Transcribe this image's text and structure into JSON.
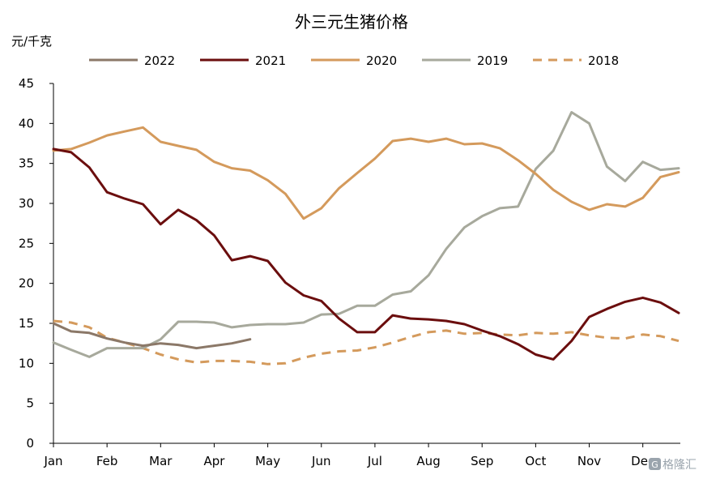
{
  "chart_data": {
    "type": "line",
    "title": "外三元生猪价格",
    "ylabel": "元/千克",
    "xlabel": "",
    "ylim": [
      0,
      45
    ],
    "yticks": [
      0,
      5,
      10,
      15,
      20,
      25,
      30,
      35,
      40,
      45
    ],
    "xlim": [
      0,
      11.7
    ],
    "xtick_labels": [
      "Jan",
      "Feb",
      "Mar",
      "Apr",
      "May",
      "Jun",
      "Jul",
      "Aug",
      "Sep",
      "Oct",
      "Nov",
      "Dec"
    ],
    "grid": false,
    "legend_position": "top",
    "x_unit": "months from Jan 1",
    "series": [
      {
        "name": "2022",
        "color": "#8b7868",
        "dash": "solid",
        "x": [
          0,
          0.33,
          0.67,
          1.0,
          1.33,
          1.67,
          2.0,
          2.33,
          2.67,
          3.0,
          3.33,
          3.67
        ],
        "values": [
          15.0,
          14.0,
          13.8,
          13.1,
          12.6,
          12.2,
          12.5,
          12.3,
          11.9,
          12.2,
          12.5,
          13.0
        ]
      },
      {
        "name": "2021",
        "color": "#6b0e0e",
        "dash": "solid",
        "x": [
          0,
          0.33,
          0.67,
          1.0,
          1.33,
          1.67,
          2.0,
          2.33,
          2.67,
          3.0,
          3.33,
          3.67,
          4.0,
          4.33,
          4.67,
          5.0,
          5.33,
          5.67,
          6.0,
          6.33,
          6.67,
          7.0,
          7.33,
          7.67,
          8.0,
          8.33,
          8.67,
          9.0,
          9.33,
          9.67,
          10.0,
          10.33,
          10.67,
          11.0,
          11.33,
          11.67
        ],
        "values": [
          36.8,
          36.4,
          34.5,
          31.4,
          30.6,
          29.9,
          27.4,
          29.2,
          27.9,
          26.0,
          22.9,
          23.4,
          22.8,
          20.1,
          18.5,
          17.8,
          15.6,
          13.9,
          13.9,
          16.0,
          15.6,
          15.5,
          15.3,
          14.9,
          14.1,
          13.4,
          12.4,
          11.1,
          10.5,
          12.8,
          15.8,
          16.8,
          17.7,
          18.2,
          17.6,
          16.3
        ]
      },
      {
        "name": "2020",
        "color": "#d49a5c",
        "dash": "solid",
        "x": [
          0,
          0.33,
          0.67,
          1.0,
          1.33,
          1.67,
          2.0,
          2.33,
          2.67,
          3.0,
          3.33,
          3.67,
          4.0,
          4.33,
          4.67,
          5.0,
          5.33,
          5.67,
          6.0,
          6.33,
          6.67,
          7.0,
          7.33,
          7.67,
          8.0,
          8.33,
          8.67,
          9.0,
          9.33,
          9.67,
          10.0,
          10.33,
          10.67,
          11.0,
          11.33,
          11.67
        ],
        "values": [
          36.6,
          36.8,
          37.6,
          38.5,
          39.0,
          39.5,
          37.7,
          37.2,
          36.7,
          35.2,
          34.4,
          34.1,
          32.9,
          31.2,
          28.1,
          29.4,
          31.9,
          33.8,
          35.6,
          37.8,
          38.1,
          37.7,
          38.1,
          37.4,
          37.5,
          36.9,
          35.4,
          33.7,
          31.7,
          30.2,
          29.2,
          29.9,
          29.6,
          30.7,
          33.3,
          33.9
        ]
      },
      {
        "name": "2019",
        "color": "#a7a99c",
        "dash": "solid",
        "x": [
          0,
          0.33,
          0.67,
          1.0,
          1.33,
          1.67,
          2.0,
          2.33,
          2.67,
          3.0,
          3.33,
          3.67,
          4.0,
          4.33,
          4.67,
          5.0,
          5.33,
          5.67,
          6.0,
          6.33,
          6.67,
          7.0,
          7.33,
          7.67,
          8.0,
          8.33,
          8.67,
          9.0,
          9.33,
          9.67,
          10.0,
          10.33,
          10.67,
          11.0,
          11.33,
          11.67
        ],
        "values": [
          12.6,
          11.7,
          10.8,
          11.9,
          11.9,
          11.9,
          13.0,
          15.2,
          15.2,
          15.1,
          14.5,
          14.8,
          14.9,
          14.9,
          15.1,
          16.1,
          16.2,
          17.2,
          17.2,
          18.6,
          19.0,
          21.0,
          24.3,
          27.0,
          28.4,
          29.4,
          29.6,
          34.3,
          36.6,
          41.4,
          40.0,
          34.6,
          32.8,
          35.2,
          34.2,
          34.4
        ]
      },
      {
        "name": "2018",
        "color": "#d49a5c",
        "dash": "dashed",
        "x": [
          0,
          0.33,
          0.67,
          1.0,
          1.33,
          1.67,
          2.0,
          2.33,
          2.67,
          3.0,
          3.33,
          3.67,
          4.0,
          4.33,
          4.67,
          5.0,
          5.33,
          5.67,
          6.0,
          6.33,
          6.67,
          7.0,
          7.33,
          7.67,
          8.0,
          8.33,
          8.67,
          9.0,
          9.33,
          9.67,
          10.0,
          10.33,
          10.67,
          11.0,
          11.33,
          11.67
        ],
        "values": [
          15.3,
          15.1,
          14.5,
          13.2,
          12.6,
          11.9,
          11.1,
          10.5,
          10.1,
          10.3,
          10.3,
          10.2,
          9.9,
          10.0,
          10.7,
          11.2,
          11.5,
          11.6,
          12.0,
          12.6,
          13.3,
          13.9,
          14.1,
          13.7,
          13.8,
          13.6,
          13.5,
          13.8,
          13.7,
          13.9,
          13.5,
          13.2,
          13.1,
          13.6,
          13.4,
          12.8
        ]
      }
    ]
  },
  "watermark": {
    "text": "格隆汇",
    "badge": "G"
  }
}
